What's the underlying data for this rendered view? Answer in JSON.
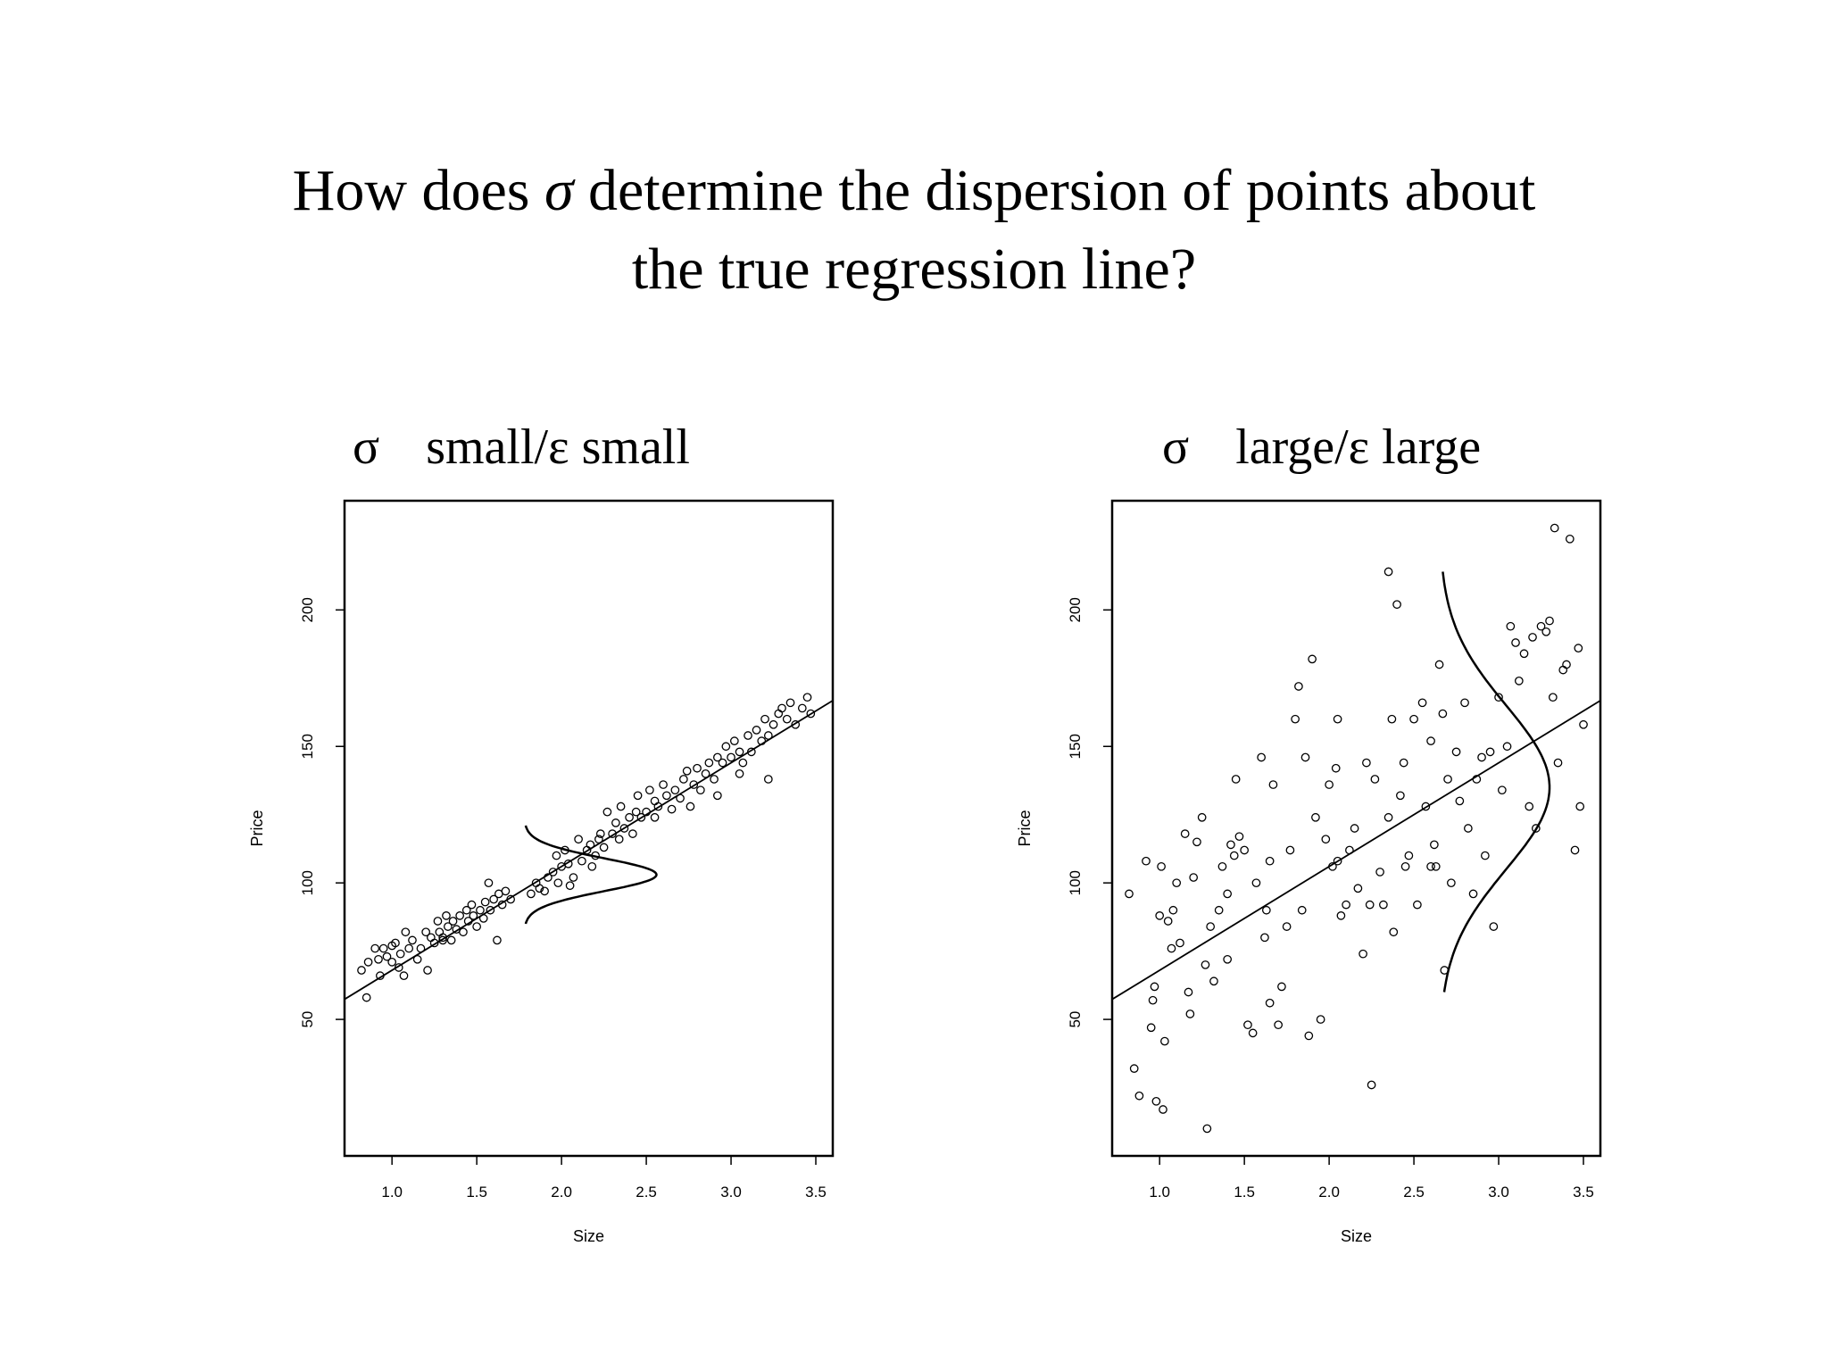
{
  "slide": {
    "title_part1": "How does ",
    "title_sigma": "σ",
    "title_part2": " determine the dispersion of points about",
    "title_line2": "the true regression line?"
  },
  "panels": [
    {
      "sigma_symbol": "σ",
      "label": "small/ε small"
    },
    {
      "sigma_symbol": "σ",
      "label": "large/ε large"
    }
  ],
  "chart_data": [
    {
      "type": "scatter",
      "title": "",
      "xlabel": "Size",
      "ylabel": "Price",
      "xlim": [
        0.72,
        3.6
      ],
      "ylim": [
        0,
        240
      ],
      "x_ticks": [
        "1.0",
        "1.5",
        "2.0",
        "2.5",
        "3.0",
        "3.5"
      ],
      "y_ticks": [
        "50",
        "100",
        "150",
        "200"
      ],
      "grid": false,
      "regression_line": {
        "intercept": 30,
        "slope": 38
      },
      "normal_curve": {
        "center_x": 2.65,
        "center_y": 103,
        "spread_y": 6,
        "peak_width_x": 0.78,
        "baseline_x": 1.78,
        "y_range": [
          85,
          121
        ]
      },
      "points": [
        [
          0.82,
          68
        ],
        [
          0.85,
          58
        ],
        [
          0.86,
          71
        ],
        [
          0.9,
          76
        ],
        [
          0.92,
          72
        ],
        [
          0.93,
          66
        ],
        [
          0.95,
          76
        ],
        [
          0.97,
          73
        ],
        [
          1.0,
          71
        ],
        [
          1.0,
          77
        ],
        [
          1.02,
          78
        ],
        [
          1.04,
          69
        ],
        [
          1.05,
          74
        ],
        [
          1.07,
          66
        ],
        [
          1.08,
          82
        ],
        [
          1.1,
          76
        ],
        [
          1.12,
          79
        ],
        [
          1.15,
          72
        ],
        [
          1.17,
          76
        ],
        [
          1.2,
          82
        ],
        [
          1.21,
          68
        ],
        [
          1.23,
          80
        ],
        [
          1.25,
          78
        ],
        [
          1.27,
          86
        ],
        [
          1.28,
          82
        ],
        [
          1.3,
          80
        ],
        [
          1.32,
          88
        ],
        [
          1.33,
          84
        ],
        [
          1.35,
          79
        ],
        [
          1.36,
          86
        ],
        [
          1.38,
          83
        ],
        [
          1.4,
          88
        ],
        [
          1.42,
          82
        ],
        [
          1.44,
          90
        ],
        [
          1.45,
          86
        ],
        [
          1.47,
          92
        ],
        [
          1.48,
          88
        ],
        [
          1.5,
          84
        ],
        [
          1.52,
          90
        ],
        [
          1.54,
          87
        ],
        [
          1.55,
          93
        ],
        [
          1.57,
          100
        ],
        [
          1.58,
          90
        ],
        [
          1.6,
          94
        ],
        [
          1.62,
          79
        ],
        [
          1.63,
          96
        ],
        [
          1.65,
          92
        ],
        [
          1.67,
          97
        ],
        [
          1.7,
          94
        ],
        [
          1.82,
          96
        ],
        [
          1.85,
          100
        ],
        [
          1.87,
          98
        ],
        [
          1.9,
          97
        ],
        [
          1.92,
          102
        ],
        [
          1.95,
          104
        ],
        [
          1.97,
          110
        ],
        [
          2.0,
          106
        ],
        [
          2.02,
          112
        ],
        [
          2.04,
          107
        ],
        [
          2.05,
          99
        ],
        [
          2.07,
          102
        ],
        [
          2.1,
          116
        ],
        [
          2.12,
          108
        ],
        [
          2.15,
          112
        ],
        [
          2.17,
          114
        ],
        [
          2.2,
          110
        ],
        [
          2.22,
          116
        ],
        [
          2.23,
          118
        ],
        [
          2.25,
          113
        ],
        [
          2.27,
          126
        ],
        [
          2.3,
          118
        ],
        [
          2.32,
          122
        ],
        [
          2.34,
          116
        ],
        [
          2.35,
          128
        ],
        [
          2.37,
          120
        ],
        [
          2.4,
          124
        ],
        [
          2.42,
          118
        ],
        [
          2.44,
          126
        ],
        [
          2.45,
          132
        ],
        [
          2.47,
          124
        ],
        [
          2.5,
          126
        ],
        [
          2.52,
          134
        ],
        [
          2.55,
          130
        ],
        [
          2.57,
          128
        ],
        [
          2.6,
          136
        ],
        [
          2.62,
          132
        ],
        [
          2.65,
          127
        ],
        [
          2.67,
          134
        ],
        [
          2.7,
          131
        ],
        [
          2.72,
          138
        ],
        [
          2.74,
          141
        ],
        [
          2.76,
          128
        ],
        [
          2.78,
          136
        ],
        [
          2.8,
          142
        ],
        [
          2.82,
          134
        ],
        [
          2.85,
          140
        ],
        [
          2.87,
          144
        ],
        [
          2.9,
          138
        ],
        [
          2.92,
          146
        ],
        [
          2.95,
          144
        ],
        [
          2.97,
          150
        ],
        [
          3.0,
          146
        ],
        [
          3.02,
          152
        ],
        [
          3.05,
          148
        ],
        [
          3.07,
          144
        ],
        [
          3.1,
          154
        ],
        [
          3.12,
          148
        ],
        [
          3.15,
          156
        ],
        [
          3.18,
          152
        ],
        [
          3.2,
          160
        ],
        [
          3.22,
          154
        ],
        [
          3.25,
          158
        ],
        [
          3.28,
          162
        ],
        [
          3.3,
          164
        ],
        [
          3.33,
          160
        ],
        [
          3.35,
          166
        ],
        [
          3.38,
          158
        ],
        [
          3.42,
          164
        ],
        [
          3.45,
          168
        ],
        [
          3.47,
          162
        ],
        [
          3.22,
          138
        ],
        [
          3.05,
          140
        ],
        [
          2.92,
          132
        ],
        [
          2.55,
          124
        ],
        [
          2.18,
          106
        ],
        [
          1.98,
          100
        ],
        [
          1.3,
          79
        ]
      ]
    },
    {
      "type": "scatter",
      "title": "",
      "xlabel": "Size",
      "ylabel": "Price",
      "xlim": [
        0.72,
        3.6
      ],
      "ylim": [
        0,
        240
      ],
      "x_ticks": [
        "1.0",
        "1.5",
        "2.0",
        "2.5",
        "3.0",
        "3.5"
      ],
      "y_ticks": [
        "50",
        "100",
        "150",
        "200"
      ],
      "grid": false,
      "regression_line": {
        "intercept": 30,
        "slope": 38
      },
      "normal_curve": {
        "center_x": 2.65,
        "center_y": 135,
        "spread_y": 30,
        "peak_width_x": 0.65,
        "baseline_x": 2.65,
        "y_range": [
          60,
          214
        ]
      },
      "points": [
        [
          0.82,
          96
        ],
        [
          0.85,
          32
        ],
        [
          0.88,
          22
        ],
        [
          0.92,
          108
        ],
        [
          0.95,
          47
        ],
        [
          0.96,
          57
        ],
        [
          0.97,
          62
        ],
        [
          0.98,
          20
        ],
        [
          1.0,
          88
        ],
        [
          1.01,
          106
        ],
        [
          1.02,
          17
        ],
        [
          1.03,
          42
        ],
        [
          1.05,
          86
        ],
        [
          1.07,
          76
        ],
        [
          1.08,
          90
        ],
        [
          1.1,
          100
        ],
        [
          1.12,
          78
        ],
        [
          1.15,
          118
        ],
        [
          1.17,
          60
        ],
        [
          1.18,
          52
        ],
        [
          1.2,
          102
        ],
        [
          1.22,
          115
        ],
        [
          1.25,
          124
        ],
        [
          1.27,
          70
        ],
        [
          1.28,
          10
        ],
        [
          1.3,
          84
        ],
        [
          1.32,
          64
        ],
        [
          1.35,
          90
        ],
        [
          1.37,
          106
        ],
        [
          1.4,
          72
        ],
        [
          1.42,
          114
        ],
        [
          1.44,
          110
        ],
        [
          1.45,
          138
        ],
        [
          1.47,
          117
        ],
        [
          1.5,
          112
        ],
        [
          1.52,
          48
        ],
        [
          1.55,
          45
        ],
        [
          1.57,
          100
        ],
        [
          1.6,
          146
        ],
        [
          1.62,
          80
        ],
        [
          1.63,
          90
        ],
        [
          1.65,
          56
        ],
        [
          1.67,
          136
        ],
        [
          1.7,
          48
        ],
        [
          1.72,
          62
        ],
        [
          1.75,
          84
        ],
        [
          1.77,
          112
        ],
        [
          1.8,
          160
        ],
        [
          1.82,
          172
        ],
        [
          1.84,
          90
        ],
        [
          1.86,
          146
        ],
        [
          1.88,
          44
        ],
        [
          1.9,
          182
        ],
        [
          1.92,
          124
        ],
        [
          1.95,
          50
        ],
        [
          1.98,
          116
        ],
        [
          2.0,
          136
        ],
        [
          2.02,
          106
        ],
        [
          2.04,
          142
        ],
        [
          2.05,
          160
        ],
        [
          2.07,
          88
        ],
        [
          2.1,
          92
        ],
        [
          2.12,
          112
        ],
        [
          2.15,
          120
        ],
        [
          2.17,
          98
        ],
        [
          2.2,
          74
        ],
        [
          2.22,
          144
        ],
        [
          2.24,
          92
        ],
        [
          2.25,
          26
        ],
        [
          2.27,
          138
        ],
        [
          2.3,
          104
        ],
        [
          2.32,
          92
        ],
        [
          2.35,
          214
        ],
        [
          2.37,
          160
        ],
        [
          2.38,
          82
        ],
        [
          2.4,
          202
        ],
        [
          2.42,
          132
        ],
        [
          2.44,
          144
        ],
        [
          2.45,
          106
        ],
        [
          2.47,
          110
        ],
        [
          2.5,
          160
        ],
        [
          2.52,
          92
        ],
        [
          2.55,
          166
        ],
        [
          2.57,
          128
        ],
        [
          2.6,
          152
        ],
        [
          2.62,
          114
        ],
        [
          2.63,
          106
        ],
        [
          2.65,
          180
        ],
        [
          2.67,
          162
        ],
        [
          2.7,
          138
        ],
        [
          2.72,
          100
        ],
        [
          2.75,
          148
        ],
        [
          2.77,
          130
        ],
        [
          2.8,
          166
        ],
        [
          2.82,
          120
        ],
        [
          2.85,
          96
        ],
        [
          2.87,
          138
        ],
        [
          2.9,
          146
        ],
        [
          2.92,
          110
        ],
        [
          2.95,
          148
        ],
        [
          2.97,
          84
        ],
        [
          3.0,
          168
        ],
        [
          3.02,
          134
        ],
        [
          3.05,
          150
        ],
        [
          3.07,
          194
        ],
        [
          3.1,
          188
        ],
        [
          3.12,
          174
        ],
        [
          3.15,
          184
        ],
        [
          3.18,
          128
        ],
        [
          3.2,
          190
        ],
        [
          3.22,
          120
        ],
        [
          3.25,
          194
        ],
        [
          3.28,
          192
        ],
        [
          3.3,
          196
        ],
        [
          3.32,
          168
        ],
        [
          3.33,
          230
        ],
        [
          3.35,
          144
        ],
        [
          3.38,
          178
        ],
        [
          3.4,
          180
        ],
        [
          3.42,
          226
        ],
        [
          3.45,
          112
        ],
        [
          3.47,
          186
        ],
        [
          3.48,
          128
        ],
        [
          3.5,
          158
        ],
        [
          2.68,
          68
        ],
        [
          2.6,
          106
        ],
        [
          2.35,
          124
        ],
        [
          2.05,
          108
        ],
        [
          1.65,
          108
        ],
        [
          1.4,
          96
        ]
      ]
    }
  ]
}
